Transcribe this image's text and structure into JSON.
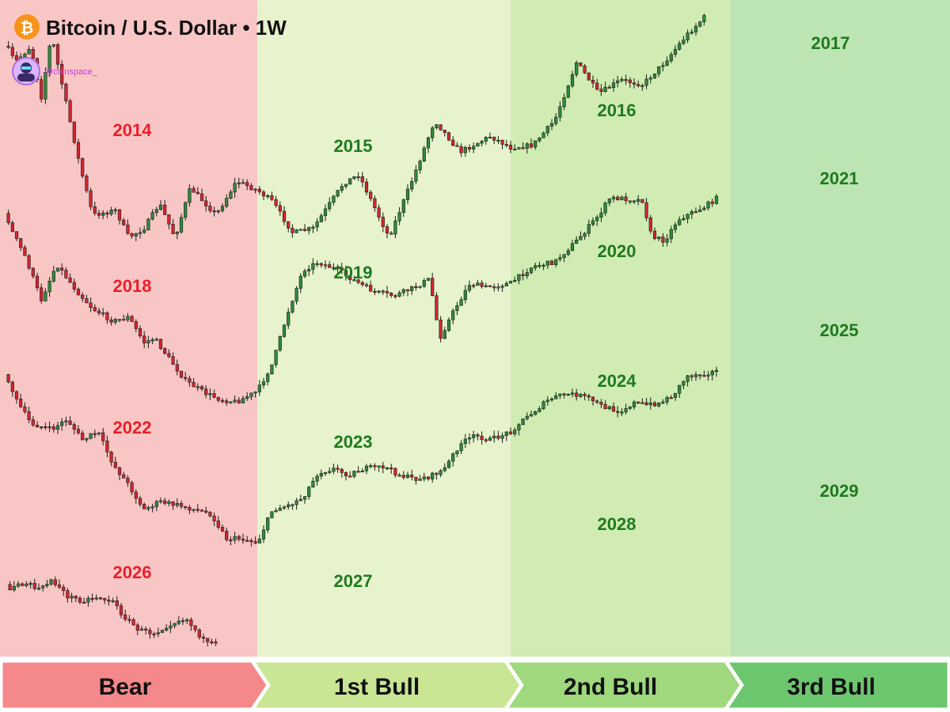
{
  "header": {
    "title": "Bitcoin / U.S. Dollar • 1W",
    "logo_icon": "bitcoin-icon",
    "logo_glyph": "₿",
    "handle": "@coinspace_",
    "avatar_icon": "avatar-icon"
  },
  "colors": {
    "bear_zone": "#f9c6c6",
    "bull1_zone": "#e6f3cc",
    "bull2_zone": "#d0ecb2",
    "bull3_zone": "#bde5b4",
    "up_candle": "#2e8b3c",
    "down_candle": "#d7262e",
    "bear_text": "#e8202a",
    "bull_text": "#1e7a1e",
    "bitcoin_orange": "#f7931a"
  },
  "phases": [
    "Bear",
    "1st Bull",
    "2nd Bull",
    "3rd Bull"
  ],
  "chart_data": {
    "type": "line",
    "title": "Bitcoin / U.S. Dollar • 1W",
    "xlabel": "",
    "ylabel": "",
    "grid": false,
    "x": [
      "Bear",
      "1st Bull",
      "2nd Bull",
      "3rd Bull"
    ],
    "series": [
      {
        "cycle": 1,
        "year_labels": [
          {
            "text": "2014",
            "phase": "Bear"
          },
          {
            "text": "2015",
            "phase": "1st Bull"
          },
          {
            "text": "2016",
            "phase": "2nd Bull"
          },
          {
            "text": "2017",
            "phase": "3rd Bull"
          }
        ],
        "path": [
          [
            0,
            0.1
          ],
          [
            0.06,
            0.22
          ],
          [
            0.12,
            0.15
          ],
          [
            0.16,
            0.38
          ],
          [
            0.2,
            0.1
          ],
          [
            0.26,
            0.42
          ],
          [
            0.31,
            0.68
          ],
          [
            0.36,
            0.9
          ],
          [
            0.45,
            0.88
          ],
          [
            0.5,
            1.0
          ],
          [
            0.56,
            0.96
          ],
          [
            0.62,
            0.85
          ],
          [
            0.68,
            1.0
          ],
          [
            0.74,
            0.78
          ],
          [
            0.84,
            0.9
          ],
          [
            0.92,
            0.75
          ],
          [
            1.0,
            0.79
          ],
          [
            1.06,
            0.84
          ],
          [
            1.14,
            0.98
          ],
          [
            1.22,
            0.96
          ],
          [
            1.34,
            0.76
          ],
          [
            1.4,
            0.72
          ],
          [
            1.52,
            1.0
          ],
          [
            1.62,
            0.72
          ],
          [
            1.7,
            0.48
          ],
          [
            1.8,
            0.62
          ],
          [
            1.92,
            0.55
          ],
          [
            2.0,
            0.6
          ],
          [
            2.1,
            0.59
          ],
          [
            2.2,
            0.48
          ],
          [
            2.3,
            0.22
          ],
          [
            2.4,
            0.36
          ],
          [
            2.5,
            0.3
          ],
          [
            2.6,
            0.32
          ],
          [
            2.7,
            0.22
          ],
          [
            2.8,
            0.1
          ],
          [
            2.9,
            0.0
          ]
        ]
      },
      {
        "cycle": 2,
        "year_labels": [
          {
            "text": "2018",
            "phase": "Bear"
          },
          {
            "text": "2019",
            "phase": "1st Bull"
          },
          {
            "text": "2020",
            "phase": "2nd Bull"
          },
          {
            "text": "2021",
            "phase": "3rd Bull"
          }
        ],
        "path": [
          [
            0,
            0.0
          ],
          [
            0.04,
            0.18
          ],
          [
            0.1,
            0.32
          ],
          [
            0.16,
            0.52
          ],
          [
            0.22,
            0.35
          ],
          [
            0.3,
            0.48
          ],
          [
            0.36,
            0.56
          ],
          [
            0.44,
            0.62
          ],
          [
            0.5,
            0.6
          ],
          [
            0.56,
            0.72
          ],
          [
            0.6,
            0.7
          ],
          [
            0.66,
            0.8
          ],
          [
            0.72,
            0.9
          ],
          [
            0.8,
            0.96
          ],
          [
            0.86,
            0.99
          ],
          [
            0.92,
            1.0
          ],
          [
            1.0,
            0.95
          ],
          [
            1.06,
            0.82
          ],
          [
            1.12,
            0.58
          ],
          [
            1.18,
            0.38
          ],
          [
            1.24,
            0.34
          ],
          [
            1.32,
            0.38
          ],
          [
            1.4,
            0.44
          ],
          [
            1.46,
            0.48
          ],
          [
            1.54,
            0.5
          ],
          [
            1.62,
            0.46
          ],
          [
            1.68,
            0.42
          ],
          [
            1.72,
            0.7
          ],
          [
            1.78,
            0.56
          ],
          [
            1.84,
            0.44
          ],
          [
            1.9,
            0.46
          ],
          [
            2.0,
            0.44
          ],
          [
            2.1,
            0.36
          ],
          [
            2.2,
            0.34
          ],
          [
            2.3,
            0.24
          ],
          [
            2.4,
            0.12
          ],
          [
            2.45,
            0.04
          ],
          [
            2.5,
            0.04
          ],
          [
            2.6,
            0.05
          ],
          [
            2.64,
            0.22
          ],
          [
            2.7,
            0.24
          ],
          [
            2.76,
            0.14
          ],
          [
            2.8,
            0.12
          ],
          [
            2.88,
            0.08
          ],
          [
            2.95,
            0.03
          ]
        ]
      },
      {
        "cycle": 3,
        "year_labels": [
          {
            "text": "2022",
            "phase": "Bear"
          },
          {
            "text": "2023",
            "phase": "1st Bull"
          },
          {
            "text": "2024",
            "phase": "2nd Bull"
          },
          {
            "text": "2025",
            "phase": "3rd Bull"
          },
          {
            "text": "2029",
            "phase": "3rd Bull"
          }
        ],
        "path": [
          [
            0,
            0.0
          ],
          [
            0.06,
            0.2
          ],
          [
            0.12,
            0.32
          ],
          [
            0.2,
            0.35
          ],
          [
            0.26,
            0.3
          ],
          [
            0.32,
            0.4
          ],
          [
            0.38,
            0.36
          ],
          [
            0.44,
            0.52
          ],
          [
            0.5,
            0.62
          ],
          [
            0.56,
            0.74
          ],
          [
            0.62,
            0.7
          ],
          [
            0.7,
            0.72
          ],
          [
            0.76,
            0.74
          ],
          [
            0.82,
            0.76
          ],
          [
            0.88,
            0.88
          ],
          [
            0.94,
            0.88
          ],
          [
            1.0,
            0.9
          ],
          [
            1.06,
            0.74
          ],
          [
            1.12,
            0.72
          ],
          [
            1.18,
            0.68
          ],
          [
            1.24,
            0.56
          ],
          [
            1.3,
            0.54
          ],
          [
            1.36,
            0.57
          ],
          [
            1.42,
            0.54
          ],
          [
            1.5,
            0.53
          ],
          [
            1.56,
            0.57
          ],
          [
            1.62,
            0.59
          ],
          [
            1.68,
            0.58
          ],
          [
            1.74,
            0.54
          ],
          [
            1.8,
            0.42
          ],
          [
            1.86,
            0.38
          ],
          [
            1.92,
            0.4
          ],
          [
            2.0,
            0.36
          ],
          [
            2.06,
            0.3
          ],
          [
            2.12,
            0.25
          ],
          [
            2.18,
            0.2
          ],
          [
            2.24,
            0.18
          ],
          [
            2.3,
            0.18
          ],
          [
            2.36,
            0.2
          ],
          [
            2.42,
            0.24
          ],
          [
            2.5,
            0.26
          ],
          [
            2.56,
            0.22
          ],
          [
            2.62,
            0.23
          ],
          [
            2.68,
            0.22
          ],
          [
            2.74,
            0.18
          ],
          [
            2.8,
            0.09
          ],
          [
            2.86,
            0.08
          ],
          [
            2.92,
            0.07
          ],
          [
            2.96,
            0.06
          ]
        ]
      },
      {
        "cycle": 4,
        "year_labels": [
          {
            "text": "2026",
            "phase": "Bear"
          },
          {
            "text": "2027",
            "phase": "1st Bull"
          },
          {
            "text": "2028",
            "phase": "2nd Bull"
          }
        ],
        "path": [
          [
            0,
            0.0
          ],
          [
            0.04,
            0.25
          ],
          [
            0.1,
            0.18
          ],
          [
            0.16,
            0.26
          ],
          [
            0.2,
            0.12
          ],
          [
            0.26,
            0.34
          ],
          [
            0.32,
            0.4
          ],
          [
            0.38,
            0.35
          ],
          [
            0.44,
            0.42
          ],
          [
            0.48,
            0.6
          ],
          [
            0.54,
            0.78
          ],
          [
            0.6,
            0.82
          ],
          [
            0.66,
            0.7
          ],
          [
            0.72,
            0.62
          ],
          [
            0.76,
            0.78
          ],
          [
            0.8,
            0.95
          ],
          [
            0.85,
            0.98
          ]
        ]
      }
    ]
  }
}
